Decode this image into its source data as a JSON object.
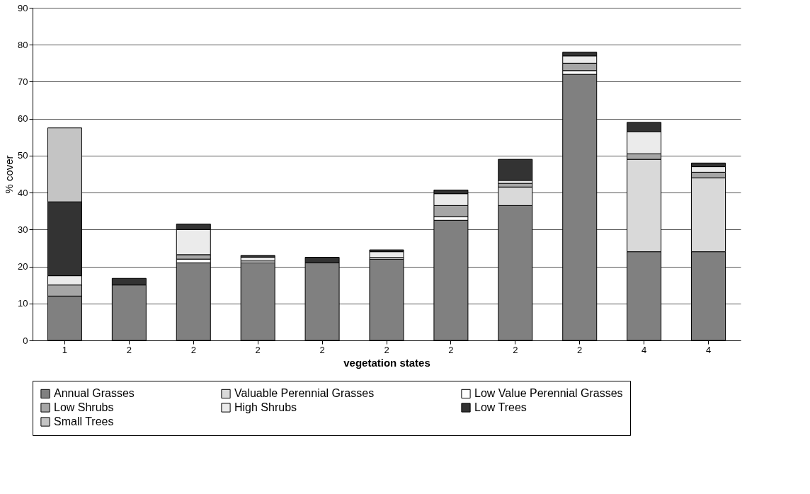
{
  "chart_data": {
    "type": "bar",
    "stacked": true,
    "xlabel": "vegetation states",
    "ylabel": "% cover",
    "categories": [
      "1",
      "2",
      "2",
      "2",
      "2",
      "2",
      "2",
      "2",
      "2",
      "4",
      "4"
    ],
    "ylim": [
      0,
      90
    ],
    "yticks": [
      0,
      10,
      20,
      30,
      40,
      50,
      60,
      70,
      80,
      90
    ],
    "grid": "y",
    "legend": "bottom",
    "series": [
      {
        "name": "Annual Grasses",
        "color": "#808080",
        "values": [
          12,
          15,
          21,
          21,
          21,
          22,
          32.5,
          36.5,
          72,
          24,
          24
        ]
      },
      {
        "name": "Valuable Perennial Grasses",
        "color": "#d9d9d9",
        "values": [
          null,
          null,
          null,
          null,
          null,
          null,
          null,
          5,
          null,
          25,
          20
        ]
      },
      {
        "name": "Low Value Perennial Grasses",
        "color": "#ffffff",
        "values": [
          null,
          null,
          1,
          0.5,
          null,
          0.5,
          1,
          null,
          1,
          null,
          null
        ]
      },
      {
        "name": "Low Shrubs",
        "color": "#a6a6a6",
        "values": [
          3,
          null,
          1.2,
          null,
          null,
          null,
          3,
          1,
          2,
          1.5,
          1.5
        ]
      },
      {
        "name": "High Shrubs",
        "color": "#ebebeb",
        "values": [
          2.5,
          null,
          6.8,
          1,
          null,
          1.5,
          3.2,
          0.8,
          2,
          6,
          1.5
        ]
      },
      {
        "name": "Low Trees",
        "color": "#333333",
        "values": [
          20,
          1.8,
          1.5,
          0.5,
          1.5,
          0.5,
          1,
          5.7,
          1,
          2.5,
          1
        ]
      },
      {
        "name": "Small Trees",
        "color": "#c4c4c4",
        "values": [
          20,
          null,
          null,
          null,
          null,
          null,
          null,
          null,
          null,
          null,
          null
        ]
      }
    ]
  }
}
